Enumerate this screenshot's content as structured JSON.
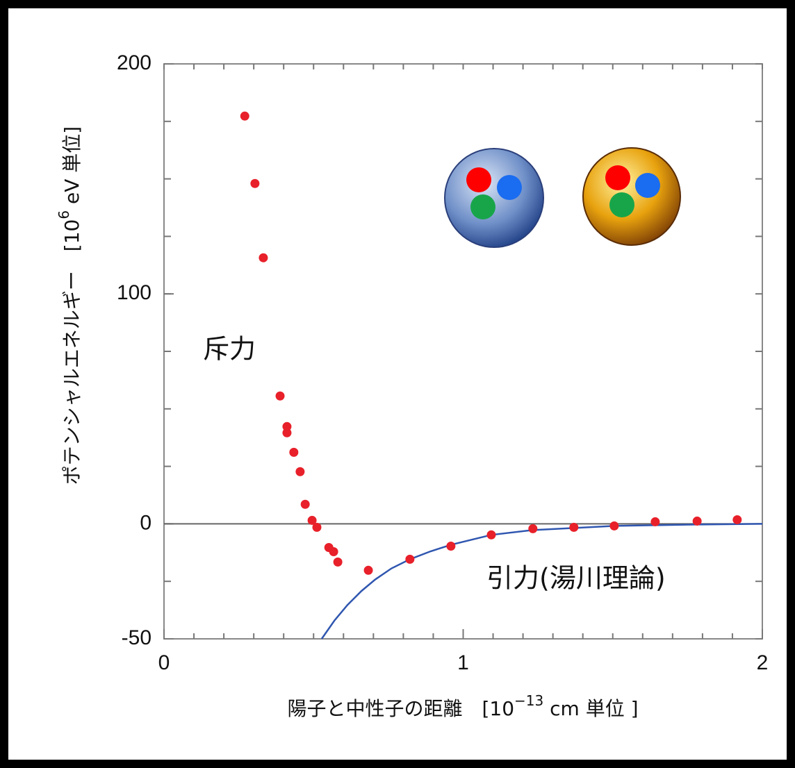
{
  "chart_data": {
    "type": "scatter",
    "y_label": {
      "text": "ポテンシャルエネルギー　[10",
      "sup": "6",
      "tail": " eV 単位]"
    },
    "x_label": {
      "text": "陽子と中性子の距離　[10",
      "sup": "−13",
      "tail": " cm 単位 ]"
    },
    "annotations": [
      "斥力",
      "引力(湯川理論)"
    ],
    "xlim": [
      0,
      2
    ],
    "xticks": [
      0,
      1,
      2
    ],
    "x_minor_step": 0.1,
    "ylim": [
      -50,
      200
    ],
    "yticks": [
      -50,
      0,
      100,
      200
    ],
    "y_minor_step": 25,
    "zero_line": true,
    "points": {
      "color": "#e8202a",
      "x": [
        0.27,
        0.304,
        0.332,
        0.388,
        0.411,
        0.411,
        0.434,
        0.455,
        0.472,
        0.495,
        0.511,
        0.551,
        0.567,
        0.581,
        0.683,
        0.822,
        0.959,
        1.094,
        1.233,
        1.37,
        1.505,
        1.642,
        1.782,
        1.916
      ],
      "y": [
        177.3,
        148,
        115.7,
        55.6,
        42.3,
        39.6,
        31.1,
        22.7,
        8.5,
        1.5,
        -1.5,
        -10.3,
        -12.1,
        -16.6,
        -20.2,
        -15.4,
        -9.7,
        -4.8,
        -2.1,
        -1.5,
        -0.9,
        0.9,
        1.2,
        1.8
      ]
    },
    "curve": {
      "color": "#2f56b0",
      "x": [
        0.527,
        0.57,
        0.613,
        0.66,
        0.706,
        0.76,
        0.822,
        0.89,
        0.959,
        1.094,
        1.233,
        1.37,
        1.505,
        1.775,
        2
      ],
      "y": [
        -50,
        -42,
        -35.3,
        -29.2,
        -24.2,
        -19.4,
        -15.4,
        -12,
        -9.1,
        -4.8,
        -2.7,
        -1.8,
        -0.9,
        -0.3,
        0
      ]
    }
  }
}
